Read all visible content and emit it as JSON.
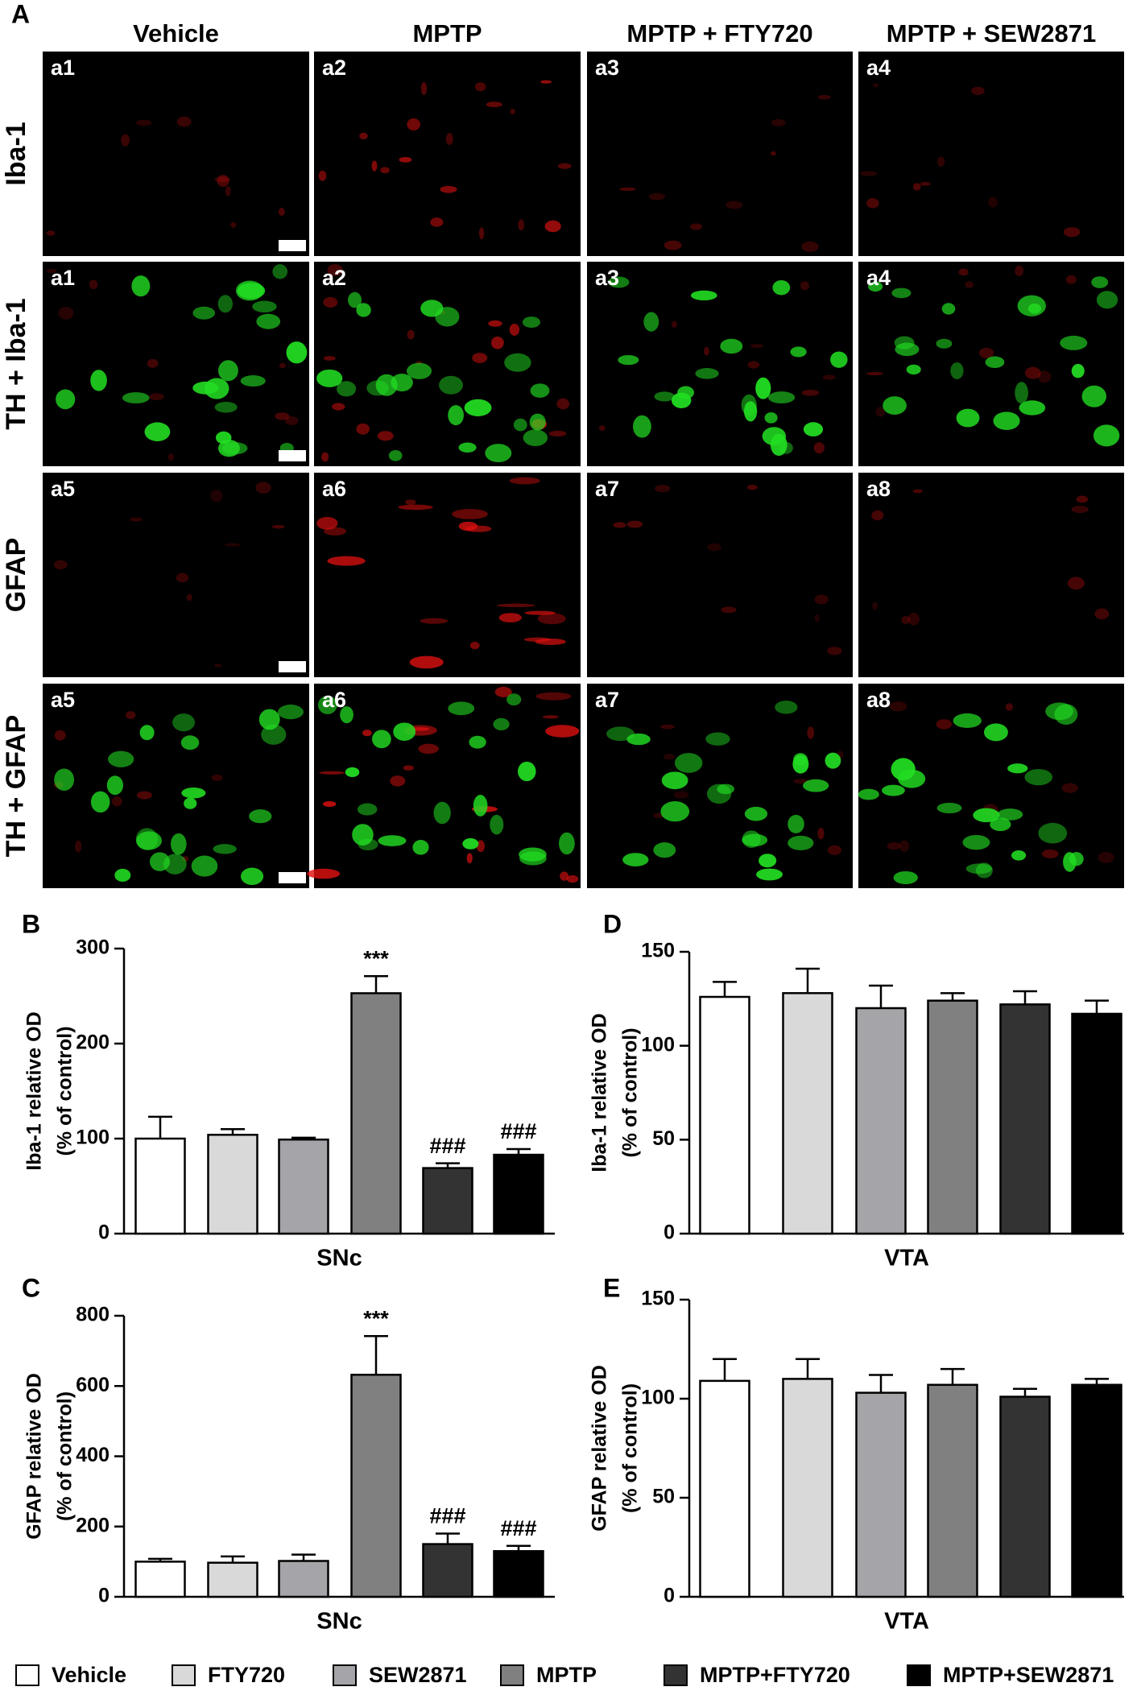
{
  "panel_a": {
    "label": "A",
    "columns": [
      "Vehicle",
      "MPTP",
      "MPTP + FTY720",
      "MPTP + SEW2871"
    ],
    "rows": [
      "Iba-1",
      "TH + Iba-1",
      "GFAP",
      "TH + GFAP"
    ],
    "tiles": [
      [
        "a1",
        "a2",
        "a3",
        "a4"
      ],
      [
        "a1",
        "a2",
        "a3",
        "a4"
      ],
      [
        "a5",
        "a6",
        "a7",
        "a8"
      ],
      [
        "a5",
        "a6",
        "a7",
        "a8"
      ]
    ]
  },
  "legend": [
    {
      "name": "Vehicle",
      "color": "#ffffff"
    },
    {
      "name": "FTY720",
      "color": "#d9d9d9"
    },
    {
      "name": "SEW2871",
      "color": "#a5a5a9"
    },
    {
      "name": "MPTP",
      "color": "#808080"
    },
    {
      "name": "MPTP+FTY720",
      "color": "#333333"
    },
    {
      "name": "MPTP+SEW2871",
      "color": "#000000"
    }
  ],
  "chart_data": [
    {
      "type": "bar",
      "panel": "B",
      "ylabel": [
        "Iba-1 relative OD",
        "(% of control)"
      ],
      "xlabel": "SNc",
      "values": [
        100,
        104,
        99,
        253,
        69,
        83
      ],
      "errors": [
        23,
        6,
        2,
        18,
        5,
        6
      ],
      "annotations": [
        null,
        null,
        null,
        "***",
        "###",
        "###"
      ],
      "ylim": [
        0,
        300
      ],
      "yticks": [
        0,
        100,
        200,
        300
      ]
    },
    {
      "type": "bar",
      "panel": "C",
      "ylabel": [
        "GFAP relative OD",
        "(% of control)"
      ],
      "xlabel": "SNc",
      "values": [
        100,
        97,
        102,
        632,
        150,
        130
      ],
      "errors": [
        8,
        18,
        18,
        110,
        30,
        15
      ],
      "annotations": [
        null,
        null,
        null,
        "***",
        "###",
        "###"
      ],
      "ylim": [
        0,
        800
      ],
      "yticks": [
        0,
        200,
        400,
        600,
        800
      ]
    },
    {
      "type": "bar",
      "panel": "D",
      "ylabel": [
        "Iba-1 relative OD",
        "(% of control)"
      ],
      "xlabel": "VTA",
      "values": [
        126,
        128,
        120,
        124,
        122,
        117
      ],
      "errors": [
        8,
        13,
        12,
        4,
        7,
        7
      ],
      "ylim": [
        0,
        150
      ],
      "yticks": [
        0,
        50,
        100,
        150
      ]
    },
    {
      "type": "bar",
      "panel": "E",
      "ylabel": [
        "GFAP relative OD",
        "(% of control)"
      ],
      "xlabel": "VTA",
      "values": [
        109,
        110,
        103,
        107,
        101,
        107
      ],
      "errors": [
        11,
        10,
        9,
        8,
        4,
        3
      ],
      "ylim": [
        0,
        150
      ],
      "yticks": [
        0,
        50,
        100,
        150
      ]
    }
  ]
}
